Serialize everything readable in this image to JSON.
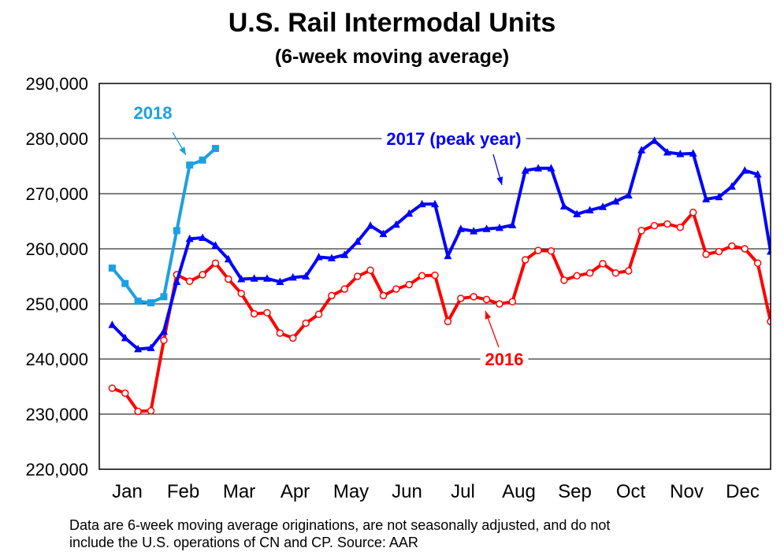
{
  "header": {
    "title": "U.S. Rail Intermodal Units",
    "subtitle": "(6-week moving average)"
  },
  "footnote": {
    "line1": "Data are 6-week moving average originations, are not seasonally adjusted, and do not",
    "line2": "include the U.S. operations of CN and CP.   Source: AAR"
  },
  "chart_data": {
    "type": "line",
    "title": "U.S. Rail Intermodal Units",
    "subtitle": "(6-week moving average)",
    "xlabel": "",
    "ylabel": "",
    "ylim": [
      220000,
      290000
    ],
    "y_ticks": [
      220000,
      230000,
      240000,
      250000,
      260000,
      270000,
      280000,
      290000
    ],
    "y_tick_labels": [
      "220,000",
      "230,000",
      "240,000",
      "250,000",
      "260,000",
      "270,000",
      "280,000",
      "290,000"
    ],
    "x_domain": [
      0,
      52
    ],
    "month_labels": [
      "Jan",
      "Feb",
      "Mar",
      "Apr",
      "May",
      "Jun",
      "Jul",
      "Aug",
      "Sep",
      "Oct",
      "Nov",
      "Dec"
    ],
    "grid": true,
    "series": [
      {
        "name": "2016",
        "label": "2016",
        "color": "#ff0000",
        "marker": "circle",
        "week": [
          1,
          2,
          3,
          4,
          5,
          6,
          7,
          8,
          9,
          10,
          11,
          12,
          13,
          14,
          15,
          16,
          17,
          18,
          19,
          20,
          21,
          22,
          23,
          24,
          25,
          26,
          27,
          28,
          29,
          30,
          31,
          32,
          33,
          34,
          35,
          36,
          37,
          38,
          39,
          40,
          41,
          42,
          43,
          44,
          45,
          46,
          47,
          48,
          49,
          50,
          51,
          52
        ],
        "values": [
          234700,
          233800,
          230500,
          230600,
          243400,
          255300,
          254100,
          255300,
          257400,
          254500,
          251900,
          248200,
          248400,
          244700,
          243800,
          246500,
          248100,
          251500,
          252700,
          255000,
          256100,
          251500,
          252700,
          253500,
          255100,
          255200,
          246800,
          251000,
          251300,
          250800,
          250000,
          250400,
          258000,
          259700,
          259600,
          254300,
          255100,
          255600,
          257300,
          255600,
          256000,
          263300,
          264200,
          264500,
          263900,
          266600,
          259000,
          259500,
          260500,
          260000,
          257400,
          246800
        ]
      },
      {
        "name": "2017 (peak year)",
        "label": "2017 (peak year)",
        "color": "#0000ff",
        "marker": "triangle",
        "week": [
          1,
          2,
          3,
          4,
          5,
          6,
          7,
          8,
          9,
          10,
          11,
          12,
          13,
          14,
          15,
          16,
          17,
          18,
          19,
          20,
          21,
          22,
          23,
          24,
          25,
          26,
          27,
          28,
          29,
          30,
          31,
          32,
          33,
          34,
          35,
          36,
          37,
          38,
          39,
          40,
          41,
          42,
          43,
          44,
          45,
          46,
          47,
          48,
          49,
          50,
          51,
          52
        ],
        "values": [
          246200,
          243800,
          241800,
          242000,
          245000,
          254000,
          261800,
          262000,
          260600,
          258100,
          254500,
          254600,
          254600,
          254000,
          254800,
          255000,
          258500,
          258300,
          258900,
          261300,
          264200,
          262700,
          264400,
          266400,
          268100,
          268100,
          258700,
          263600,
          263200,
          263600,
          263800,
          264300,
          274200,
          274600,
          274600,
          267700,
          266300,
          267000,
          267600,
          268600,
          269700,
          277900,
          279600,
          277500,
          277200,
          277300,
          269000,
          269400,
          271300,
          274200,
          273500,
          259500
        ]
      },
      {
        "name": "2018",
        "label": "2018",
        "color": "#1ba1e2",
        "marker": "square",
        "week": [
          1,
          2,
          3,
          4,
          5,
          6,
          7,
          8,
          9
        ],
        "values": [
          256500,
          253700,
          250500,
          250200,
          251300,
          263300,
          275200,
          276100,
          278200
        ]
      }
    ]
  }
}
